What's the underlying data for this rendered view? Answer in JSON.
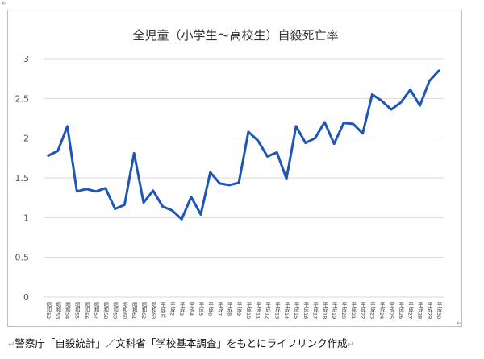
{
  "document": {
    "caption": "警察庁「自殺統計」／文科省「学校基本調査」をもとにライフリンク作成"
  },
  "chart_data": {
    "type": "line",
    "title": "全児童（小学生～高校生）自殺死亡率",
    "xlabel": "",
    "ylabel": "",
    "ylim": [
      0,
      3
    ],
    "yticks": [
      "0",
      "0.5",
      "1",
      "1.5",
      "2",
      "2.5",
      "3"
    ],
    "grid": true,
    "line_color": "#1f56b5",
    "categories": [
      "昭和52",
      "昭和53",
      "昭和54",
      "昭和55",
      "昭和56",
      "昭和57",
      "昭和58",
      "昭和59",
      "昭和60",
      "昭和61",
      "昭和62",
      "昭和63",
      "平成元",
      "平成2",
      "平成3",
      "平成4",
      "平成5",
      "平成6",
      "平成7",
      "平成8",
      "平成9",
      "平成10",
      "平成11",
      "平成12",
      "平成13",
      "平成14",
      "平成15",
      "平成16",
      "平成17",
      "平成18",
      "平成19",
      "平成20",
      "平成21",
      "平成22",
      "平成23",
      "平成24",
      "平成25",
      "平成26",
      "平成27",
      "平成28",
      "平成29",
      "平成30"
    ],
    "values": [
      1.78,
      1.84,
      2.15,
      1.33,
      1.36,
      1.33,
      1.37,
      1.11,
      1.16,
      1.81,
      1.19,
      1.34,
      1.14,
      1.09,
      0.98,
      1.26,
      1.04,
      1.57,
      1.43,
      1.41,
      1.44,
      2.08,
      1.97,
      1.77,
      1.82,
      1.49,
      2.15,
      1.94,
      2.0,
      2.2,
      1.93,
      2.19,
      2.18,
      2.06,
      2.55,
      2.47,
      2.36,
      2.45,
      2.61,
      2.41,
      2.72,
      2.85
    ]
  }
}
